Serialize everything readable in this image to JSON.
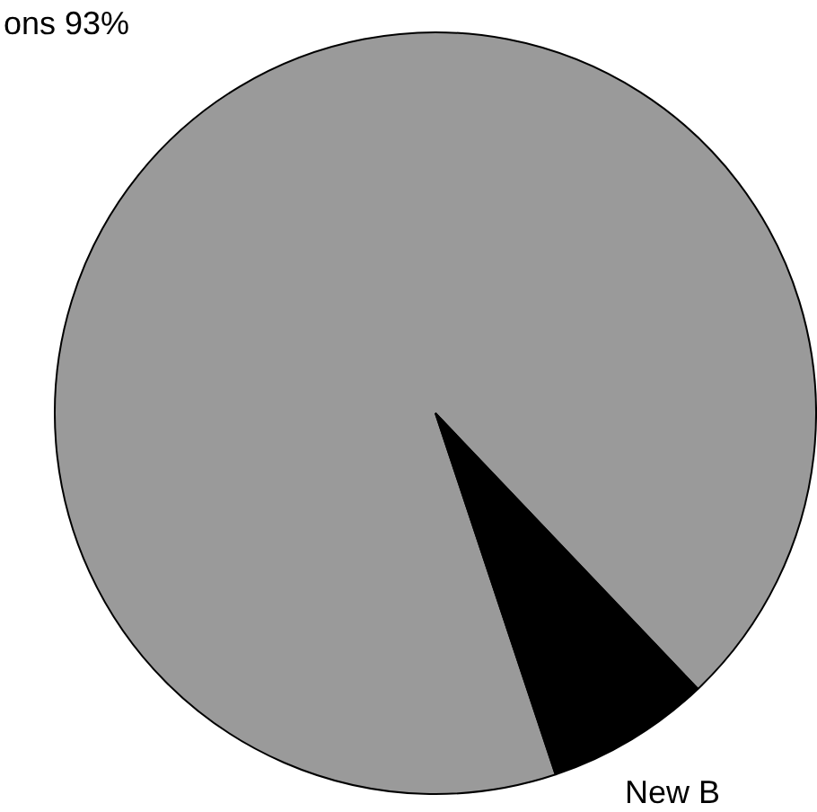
{
  "chart_data": {
    "type": "pie",
    "categories": [
      "ons",
      "New B"
    ],
    "values": [
      93,
      7
    ],
    "value_labels": [
      "93%",
      null
    ],
    "colors": [
      "#9a9a9a",
      "#000000"
    ]
  }
}
